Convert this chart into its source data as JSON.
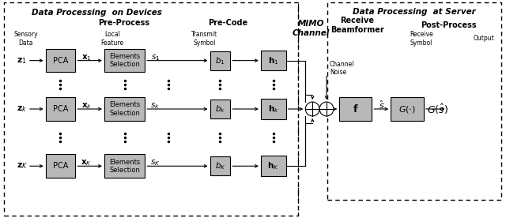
{
  "title_devices": "Data Processing  on Devices",
  "title_server": "Data Processing  at Server",
  "title_mimo": "MIMO\nChannel",
  "label_preprocess": "Pre-Process",
  "label_precode": "Pre-Code",
  "label_receive_bf": "Receive\nBeamformer",
  "label_postprocess": "Post-Process",
  "label_sensory": "Sensory\nData",
  "label_local_feature": "Local\nFeature",
  "label_transmit_symbol": "Transmit\nSymbol",
  "label_receive_symbol": "Receive\nSymbol",
  "label_output": "Output",
  "label_channel_noise": "Channel\nNoise",
  "rows": [
    {
      "z": "$\\mathbf{z}_1$",
      "x": "$\\mathbf{x}_1$",
      "s": "$s_1$",
      "b": "$b_1$",
      "h": "$\\mathbf{h}_1$"
    },
    {
      "z": "$\\mathbf{z}_k$",
      "x": "$\\mathbf{x}_k$",
      "s": "$s_k$",
      "b": "$b_k$",
      "h": "$\\mathbf{h}_k$"
    },
    {
      "z": "$\\mathbf{z}_K$",
      "x": "$\\mathbf{x}_K$",
      "s": "$s_K$",
      "b": "$b_K$",
      "h": "$\\mathbf{h}_K$"
    }
  ],
  "bg_color": "#ffffff",
  "box_color": "#b8b8b8",
  "text_color": "#000000"
}
